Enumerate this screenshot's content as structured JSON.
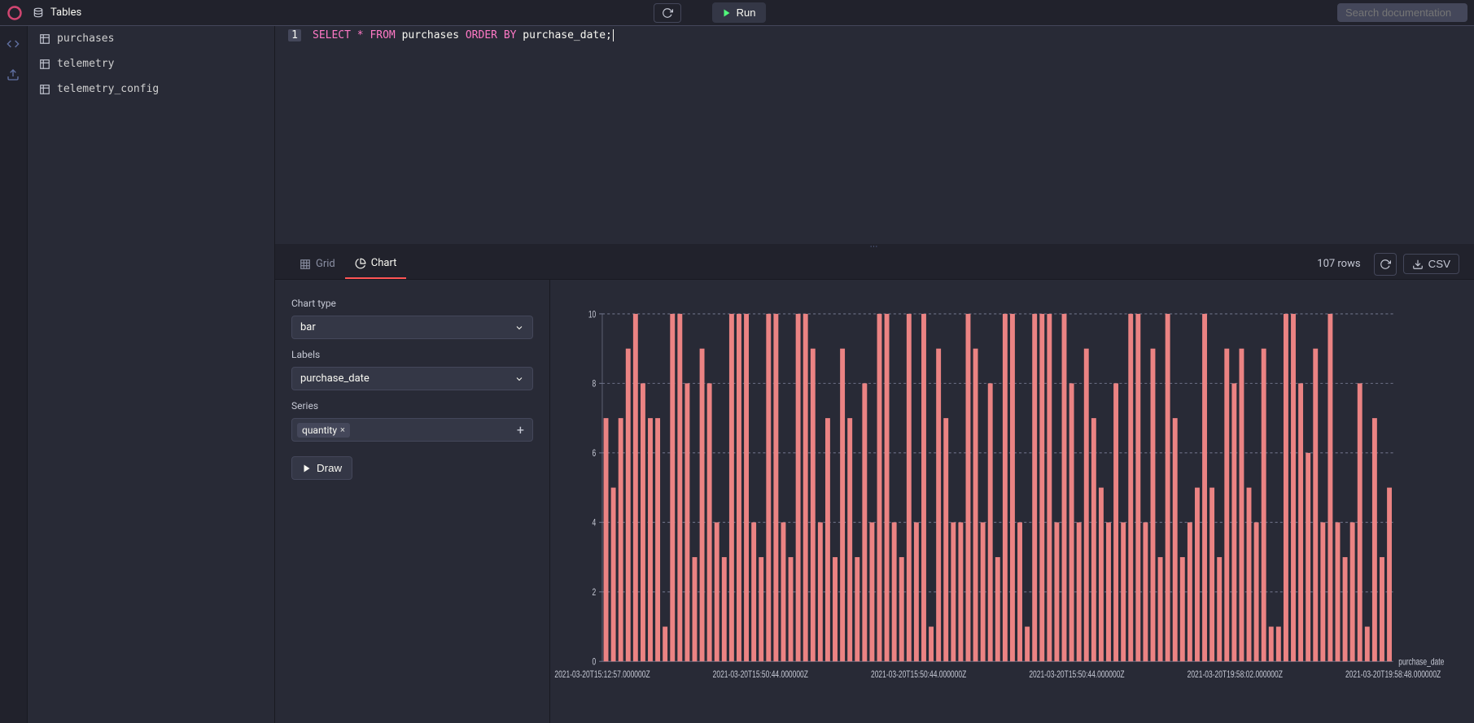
{
  "app": {
    "section_title": "Tables",
    "search_placeholder": "Search documentation"
  },
  "sidebar": {
    "tables": [
      {
        "name": "purchases"
      },
      {
        "name": "telemetry"
      },
      {
        "name": "telemetry_config"
      }
    ]
  },
  "editor": {
    "run_label": "Run",
    "line_number": "1",
    "tokens": [
      {
        "t": "SELECT",
        "c": "kw"
      },
      {
        "t": " ",
        "c": "ident"
      },
      {
        "t": "*",
        "c": "op"
      },
      {
        "t": " ",
        "c": "ident"
      },
      {
        "t": "FROM",
        "c": "kw"
      },
      {
        "t": " purchases ",
        "c": "ident"
      },
      {
        "t": "ORDER",
        "c": "kw"
      },
      {
        "t": " ",
        "c": "ident"
      },
      {
        "t": "BY",
        "c": "kw"
      },
      {
        "t": " purchase_date;",
        "c": "ident"
      }
    ]
  },
  "results": {
    "tabs": {
      "grid": "Grid",
      "chart": "Chart"
    },
    "active_tab": "chart",
    "row_count": "107 rows",
    "csv_label": "CSV"
  },
  "chart_config": {
    "chart_type_label": "Chart type",
    "chart_type_value": "bar",
    "labels_label": "Labels",
    "labels_value": "purchase_date",
    "series_label": "Series",
    "series_chip": "quantity",
    "draw_label": "Draw"
  },
  "chart": {
    "type": "bar",
    "bar_color": "#eb8383",
    "background_color": "#282a36",
    "grid_color": "#6c7086",
    "grid_dash": "4 4",
    "text_color": "#c5c8d4",
    "label_fontsize": 11,
    "ylim": [
      0,
      10
    ],
    "yticks": [
      0,
      2,
      4,
      6,
      8,
      10
    ],
    "x_axis_title": "purchase_date",
    "x_tick_labels": [
      "2021-03-20T15:12:57.000000Z",
      "2021-03-20T15:50:44.000000Z",
      "2021-03-20T15:50:44.000000Z",
      "2021-03-20T15:50:44.000000Z",
      "2021-03-20T19:58:02.000000Z",
      "2021-03-20T19:58:48.000000Z"
    ],
    "values": [
      7,
      5,
      7,
      9,
      10,
      8,
      7,
      7,
      1,
      10,
      10,
      8,
      3,
      9,
      8,
      4,
      3,
      10,
      10,
      10,
      4,
      3,
      10,
      10,
      4,
      3,
      10,
      10,
      9,
      4,
      7,
      3,
      9,
      7,
      3,
      8,
      4,
      10,
      10,
      4,
      3,
      10,
      4,
      10,
      1,
      9,
      7,
      4,
      4,
      10,
      9,
      4,
      8,
      3,
      10,
      10,
      4,
      1,
      10,
      10,
      10,
      4,
      10,
      8,
      4,
      9,
      7,
      5,
      4,
      8,
      4,
      10,
      10,
      4,
      9,
      3,
      10,
      7,
      3,
      4,
      5,
      10,
      5,
      3,
      9,
      8,
      9,
      5,
      4,
      9,
      1,
      1,
      10,
      10,
      8,
      6,
      9,
      4,
      10,
      4,
      3,
      4,
      8,
      1,
      7,
      3,
      5
    ]
  }
}
